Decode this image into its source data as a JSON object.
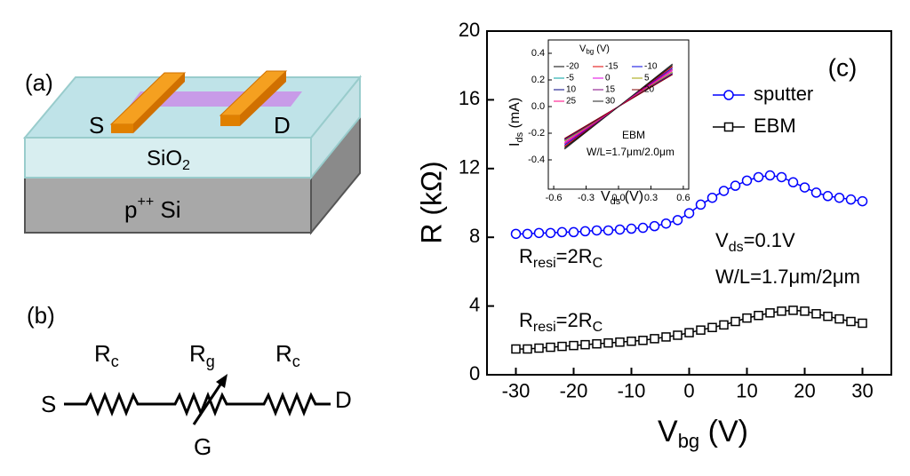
{
  "figure": {
    "panel_a": {
      "label": "(a)",
      "source": "S",
      "drain": "D",
      "oxide": [
        "SiO",
        "2"
      ],
      "substrate": [
        "p",
        "++",
        " Si"
      ]
    },
    "panel_b": {
      "label": "(b)",
      "resistors": [
        [
          "R",
          "c"
        ],
        [
          "R",
          "g"
        ],
        [
          "R",
          "c"
        ]
      ],
      "source": "S",
      "drain": "D",
      "gate": "G"
    }
  },
  "chart_data": [
    {
      "type": "line",
      "panel_label": "(c)",
      "xlabel": [
        "V",
        "bg",
        " (V)"
      ],
      "ylabel": "R (kΩ)",
      "x": [
        -30,
        -28,
        -26,
        -24,
        -22,
        -20,
        -18,
        -16,
        -14,
        -12,
        -10,
        -8,
        -6,
        -4,
        -2,
        0,
        2,
        4,
        6,
        8,
        10,
        12,
        14,
        16,
        18,
        20,
        22,
        24,
        26,
        28,
        30
      ],
      "series": [
        {
          "name": "sputter",
          "color": "#0000ff",
          "marker": "circle",
          "values": [
            8.2,
            8.2,
            8.25,
            8.25,
            8.3,
            8.3,
            8.35,
            8.4,
            8.4,
            8.45,
            8.5,
            8.55,
            8.65,
            8.8,
            9.0,
            9.4,
            9.9,
            10.3,
            10.7,
            11.0,
            11.3,
            11.5,
            11.6,
            11.5,
            11.2,
            10.9,
            10.6,
            10.4,
            10.3,
            10.2,
            10.1
          ]
        },
        {
          "name": "EBM",
          "color": "#000000",
          "marker": "square",
          "values": [
            1.5,
            1.5,
            1.55,
            1.6,
            1.65,
            1.7,
            1.75,
            1.8,
            1.85,
            1.9,
            1.95,
            2.0,
            2.1,
            2.2,
            2.3,
            2.45,
            2.6,
            2.75,
            2.9,
            3.1,
            3.3,
            3.45,
            3.6,
            3.7,
            3.75,
            3.7,
            3.55,
            3.4,
            3.25,
            3.1,
            3.0
          ]
        }
      ],
      "xlim": [
        -35,
        35
      ],
      "ylim": [
        0,
        20
      ],
      "xticks": [
        -30,
        -20,
        -10,
        0,
        10,
        20,
        30
      ],
      "yticks": [
        0,
        4,
        8,
        12,
        16,
        20
      ],
      "annotations": [
        [
          "R",
          "resi",
          "=2R",
          "C"
        ],
        [
          "R",
          "resi",
          "=2R",
          "C"
        ],
        [
          "V",
          "ds",
          "=0.1V"
        ],
        [
          "W/L=1.7μm/2μm"
        ]
      ]
    },
    {
      "type": "line",
      "xlabel": [
        "V",
        "ds",
        " (V)"
      ],
      "ylabel": [
        "I",
        "ds",
        " (mA)"
      ],
      "legend_title": [
        "V",
        "bg",
        " (V)"
      ],
      "x": [
        -0.5,
        0.5
      ],
      "series": [
        {
          "name": "-20",
          "color": "#000000",
          "values": [
            -0.31,
            0.31
          ]
        },
        {
          "name": "-15",
          "color": "#e00000",
          "values": [
            -0.3,
            0.3
          ]
        },
        {
          "name": "-10",
          "color": "#0000e0",
          "values": [
            -0.29,
            0.29
          ]
        },
        {
          "name": "-5",
          "color": "#00a0a0",
          "values": [
            -0.28,
            0.28
          ]
        },
        {
          "name": "0",
          "color": "#e000e0",
          "values": [
            -0.27,
            0.27
          ]
        },
        {
          "name": "5",
          "color": "#a0a000",
          "values": [
            -0.26,
            0.26
          ]
        },
        {
          "name": "10",
          "color": "#000080",
          "values": [
            -0.25,
            0.25
          ]
        },
        {
          "name": "15",
          "color": "#800080",
          "values": [
            -0.245,
            0.245
          ]
        },
        {
          "name": "20",
          "color": "#800000",
          "values": [
            -0.24,
            0.24
          ]
        },
        {
          "name": "25",
          "color": "#ff0080",
          "values": [
            -0.28,
            0.28
          ]
        },
        {
          "name": "30",
          "color": "#202020",
          "values": [
            -0.32,
            0.32
          ]
        }
      ],
      "xlim": [
        -0.65,
        0.65
      ],
      "ylim": [
        -0.62,
        0.5
      ],
      "xticks": [
        -0.6,
        -0.3,
        {
          "value": 0,
          "label": "0.0"
        },
        0.3,
        0.6
      ],
      "yticks": [
        -0.4,
        -0.2,
        {
          "value": 0,
          "label": "0.0"
        },
        0.2,
        0.4
      ],
      "annotations": [
        [
          "EBM"
        ],
        [
          "W/L=1.7μm/2.0μm"
        ]
      ]
    }
  ]
}
